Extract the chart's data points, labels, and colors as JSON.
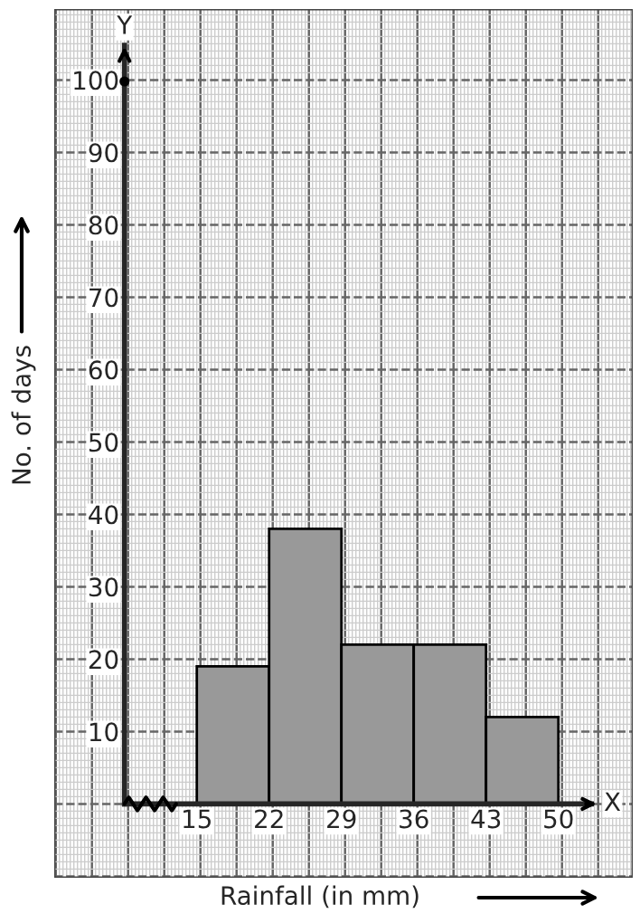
{
  "chart_data": {
    "type": "histogram",
    "xlabel": "Rainfall (in mm)",
    "ylabel": "No. of days",
    "bins": [
      15,
      22,
      29,
      36,
      43,
      50
    ],
    "values": [
      19,
      38,
      22,
      22,
      12
    ],
    "color": "#999999",
    "xlim": [
      1.2,
      57.2
    ],
    "ylim": [
      -10.2,
      109.8
    ],
    "xticks": [
      15,
      22,
      29,
      36,
      43,
      50
    ],
    "yticks": [
      10,
      20,
      30,
      40,
      50,
      60,
      70,
      80,
      90,
      100
    ],
    "annotations": [
      "Y",
      "X"
    ],
    "grid": true
  }
}
